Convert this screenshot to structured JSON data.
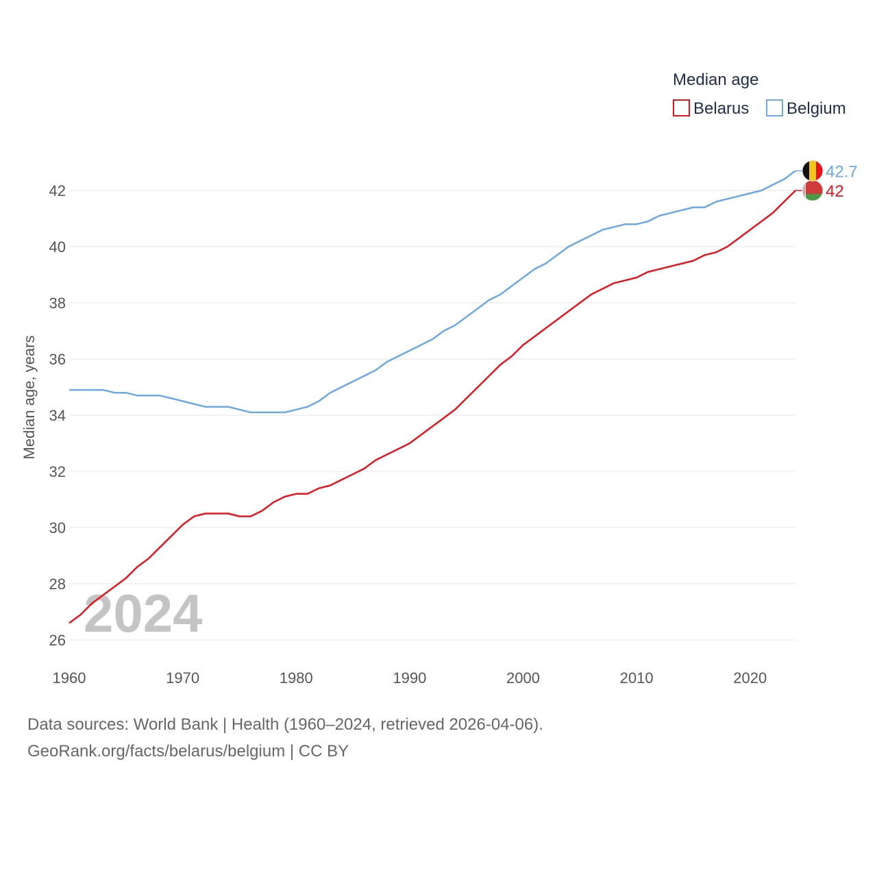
{
  "legend": {
    "title": "Median age"
  },
  "watermark_year": "2024",
  "footer": {
    "source": "Data sources: World Bank | Health (1960–2024, retrieved 2026-04-06).",
    "credit": "GeoRank.org/facts/belarus/belgium | CC BY"
  },
  "chart_data": {
    "type": "line",
    "title": "Median age",
    "xlabel": "",
    "ylabel": "Median age, years",
    "xlim": [
      1960,
      2024
    ],
    "ylim": [
      26,
      43
    ],
    "x_ticks": [
      1960,
      1970,
      1980,
      1990,
      2000,
      2010,
      2020
    ],
    "y_ticks": [
      26,
      28,
      30,
      32,
      34,
      36,
      38,
      40,
      42
    ],
    "grid": true,
    "legend_position": "top-right",
    "x": [
      1960,
      1961,
      1962,
      1963,
      1964,
      1965,
      1966,
      1967,
      1968,
      1969,
      1970,
      1971,
      1972,
      1973,
      1974,
      1975,
      1976,
      1977,
      1978,
      1979,
      1980,
      1981,
      1982,
      1983,
      1984,
      1985,
      1986,
      1987,
      1988,
      1989,
      1990,
      1991,
      1992,
      1993,
      1994,
      1995,
      1996,
      1997,
      1998,
      1999,
      2000,
      2001,
      2002,
      2003,
      2004,
      2005,
      2006,
      2007,
      2008,
      2009,
      2010,
      2011,
      2012,
      2013,
      2014,
      2015,
      2016,
      2017,
      2018,
      2019,
      2020,
      2021,
      2022,
      2023,
      2024
    ],
    "series": [
      {
        "name": "Belarus",
        "color": "#e8141d",
        "end_label": "42",
        "flag": "belarus",
        "values": [
          26.6,
          26.9,
          27.3,
          27.6,
          27.9,
          28.2,
          28.6,
          28.9,
          29.3,
          29.7,
          30.1,
          30.4,
          30.5,
          30.5,
          30.5,
          30.4,
          30.4,
          30.6,
          30.9,
          31.1,
          31.2,
          31.2,
          31.4,
          31.5,
          31.7,
          31.9,
          32.1,
          32.4,
          32.6,
          32.8,
          33.0,
          33.3,
          33.6,
          33.9,
          34.2,
          34.6,
          35.0,
          35.4,
          35.8,
          36.1,
          36.5,
          36.8,
          37.1,
          37.4,
          37.7,
          38.0,
          38.3,
          38.5,
          38.7,
          38.8,
          38.9,
          39.1,
          39.2,
          39.3,
          39.4,
          39.5,
          39.7,
          39.8,
          40.0,
          40.3,
          40.6,
          40.9,
          41.2,
          41.6,
          42.0
        ]
      },
      {
        "name": "Belgium",
        "color": "#6aa8e6",
        "end_label": "42.7",
        "flag": "belgium",
        "values": [
          34.9,
          34.9,
          34.9,
          34.9,
          34.8,
          34.8,
          34.7,
          34.7,
          34.7,
          34.6,
          34.5,
          34.4,
          34.3,
          34.3,
          34.3,
          34.2,
          34.1,
          34.1,
          34.1,
          34.1,
          34.2,
          34.3,
          34.5,
          34.8,
          35.0,
          35.2,
          35.4,
          35.6,
          35.9,
          36.1,
          36.3,
          36.5,
          36.7,
          37.0,
          37.2,
          37.5,
          37.8,
          38.1,
          38.3,
          38.6,
          38.9,
          39.2,
          39.4,
          39.7,
          40.0,
          40.2,
          40.4,
          40.6,
          40.7,
          40.8,
          40.8,
          40.9,
          41.1,
          41.2,
          41.3,
          41.4,
          41.4,
          41.6,
          41.7,
          41.8,
          41.9,
          42.0,
          42.2,
          42.4,
          42.7
        ]
      }
    ]
  }
}
